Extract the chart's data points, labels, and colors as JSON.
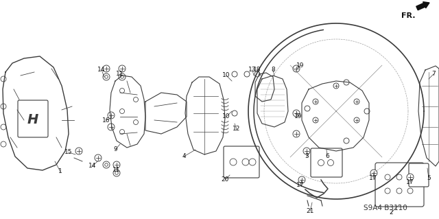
{
  "background_color": "#ffffff",
  "diagram_code": "S9A4 B3110",
  "fr_label": "FR.",
  "figsize": [
    6.4,
    3.19
  ],
  "dpi": 100,
  "image_b64": ""
}
